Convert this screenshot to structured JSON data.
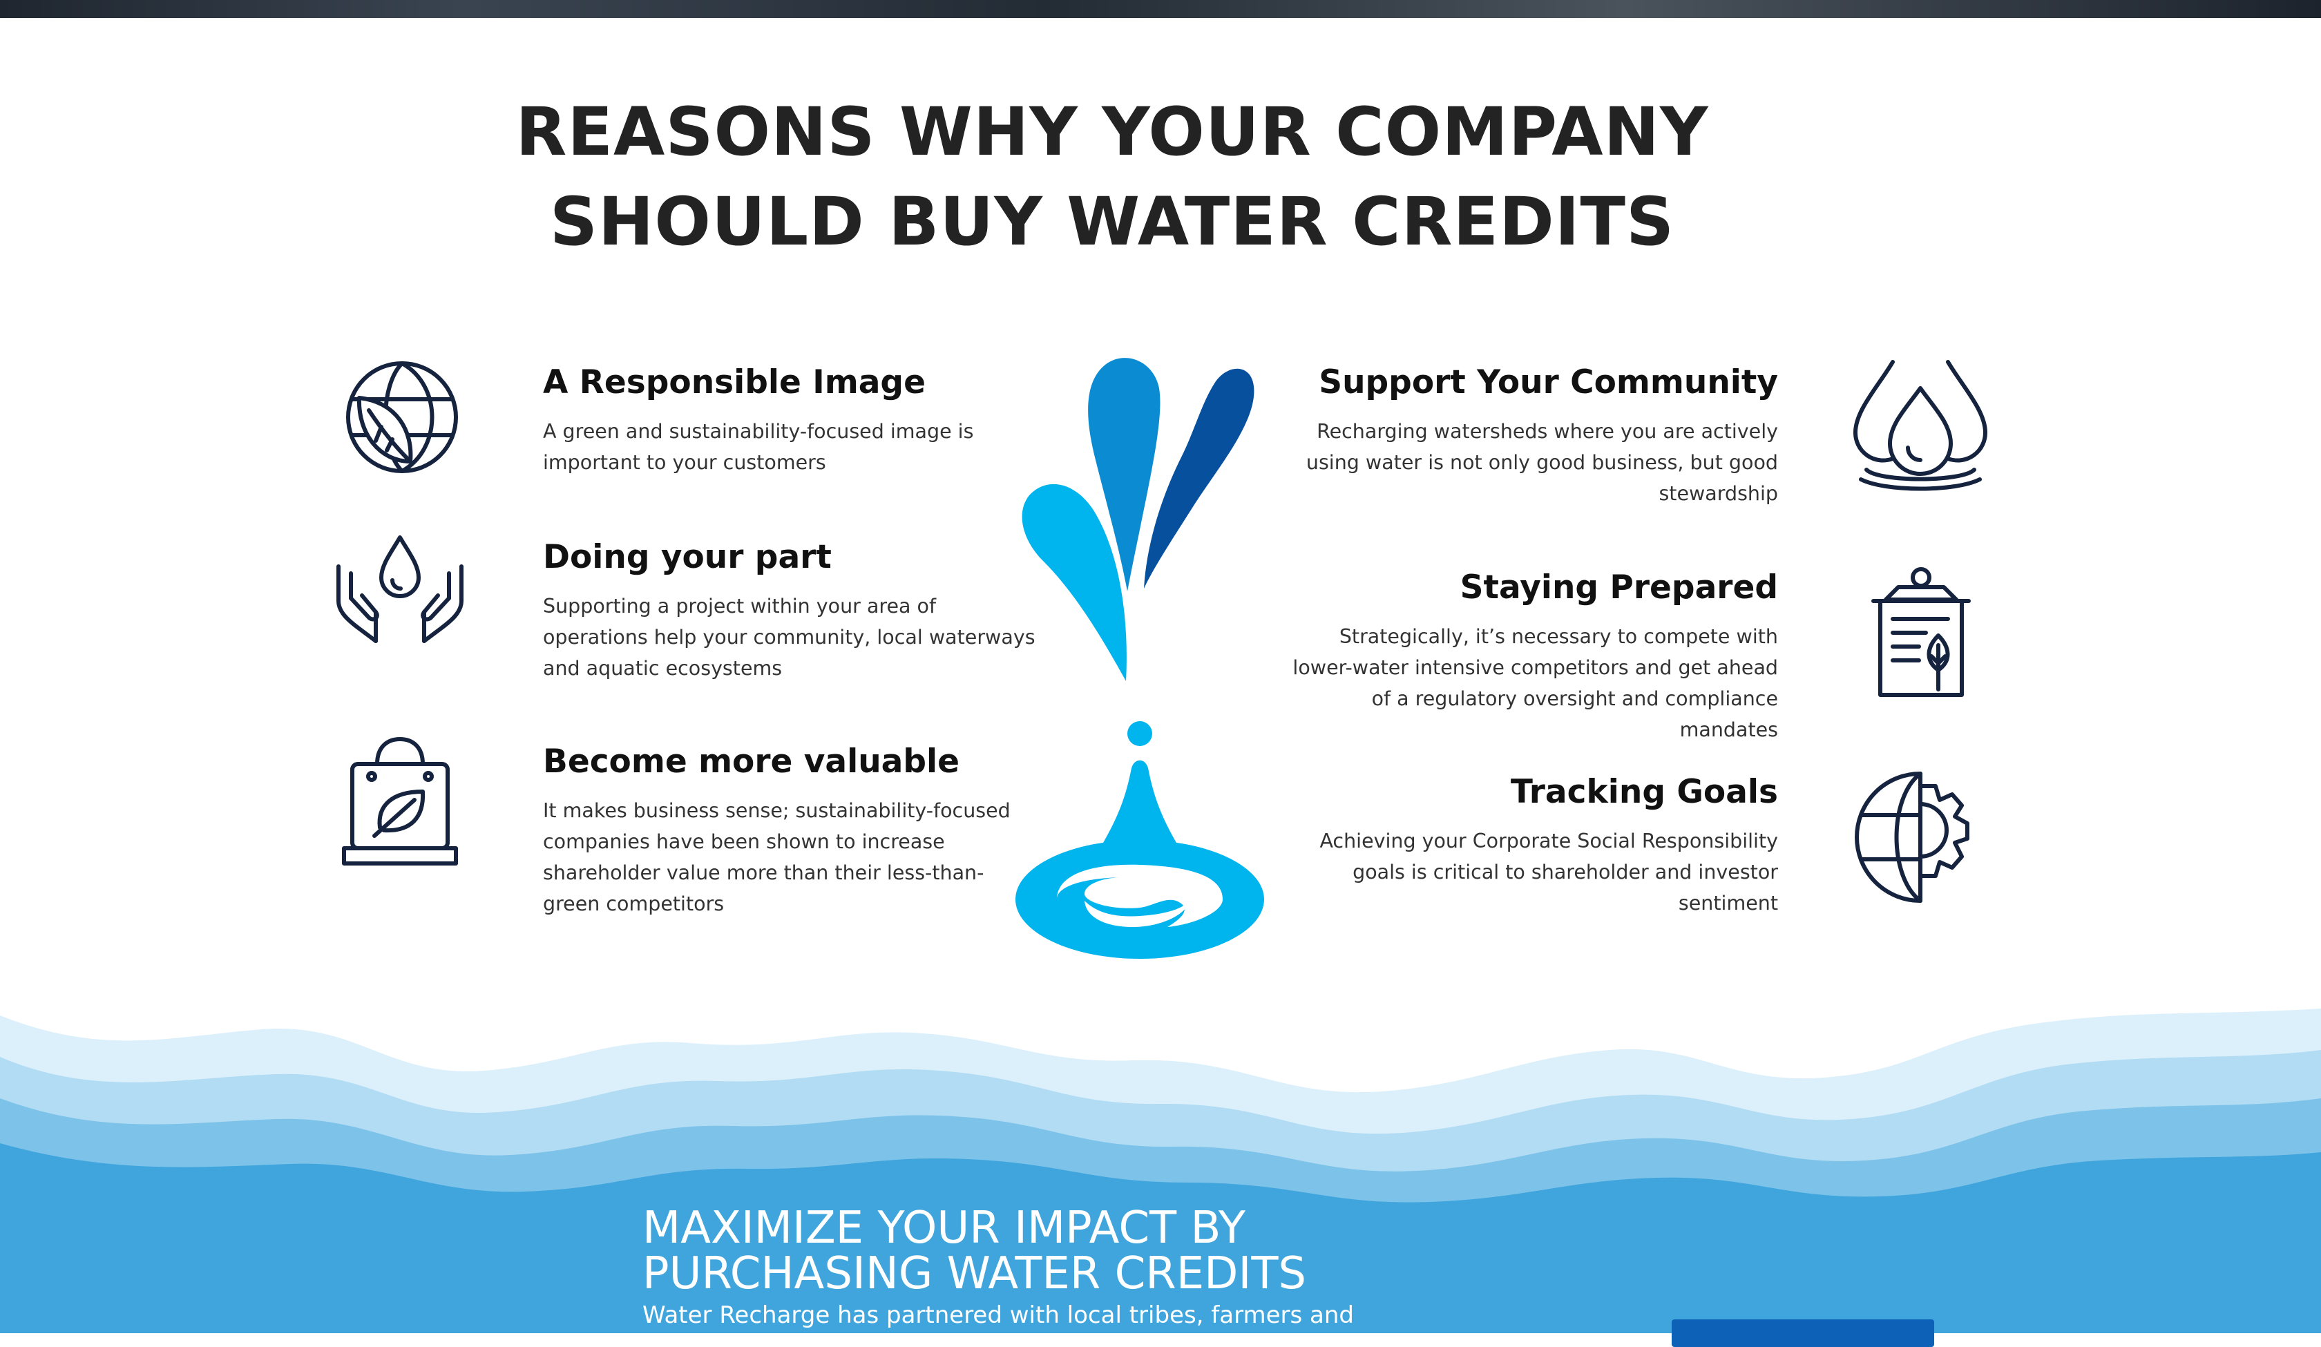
{
  "title": {
    "line1": "REASONS WHY YOUR COMPANY",
    "line2": "SHOULD BUY WATER CREDITS"
  },
  "features_left": [
    {
      "heading": "A Responsible Image",
      "text": "A green and sustainability-focused image is important to your customers",
      "icon": "globe-leaf-icon"
    },
    {
      "heading": "Doing your part",
      "text": "Supporting a project within your area of operations help your community, local waterways and aquatic ecosystems",
      "icon": "hands-drop-icon"
    },
    {
      "heading": "Become more valuable",
      "text": "It makes business sense; sustainability-focused companies have been shown to increase shareholder value more than their less-than-green competitors",
      "icon": "bag-leaf-icon"
    }
  ],
  "features_right": [
    {
      "heading": "Support Your Community",
      "text": "Recharging watersheds where you are actively using water is not only good business, but good stewardship",
      "icon": "water-drops-icon"
    },
    {
      "heading": "Staying Prepared",
      "text": "Strategically, it’s necessary to compete with lower-water intensive competitors and get ahead of a regulatory oversight and compliance mandates",
      "icon": "clipboard-leaf-icon"
    },
    {
      "heading": "Tracking Goals",
      "text": "Achieving your Corporate Social Responsibility goals is critical to shareholder and investor sentiment",
      "icon": "globe-gear-icon"
    }
  ],
  "impact": {
    "title_line1": "MAXIMIZE YOUR IMPACT BY",
    "title_line2": "PURCHASING WATER CREDITS",
    "text": "Water Recharge has partnered with local tribes, farmers and"
  },
  "colors": {
    "ink": "#15233f",
    "light_blue": "#00b4ee",
    "mid_blue": "#0a8bd2",
    "dark_blue": "#07509e",
    "section_blue": "#3fa5dc",
    "cta_blue": "#0d62b8"
  }
}
